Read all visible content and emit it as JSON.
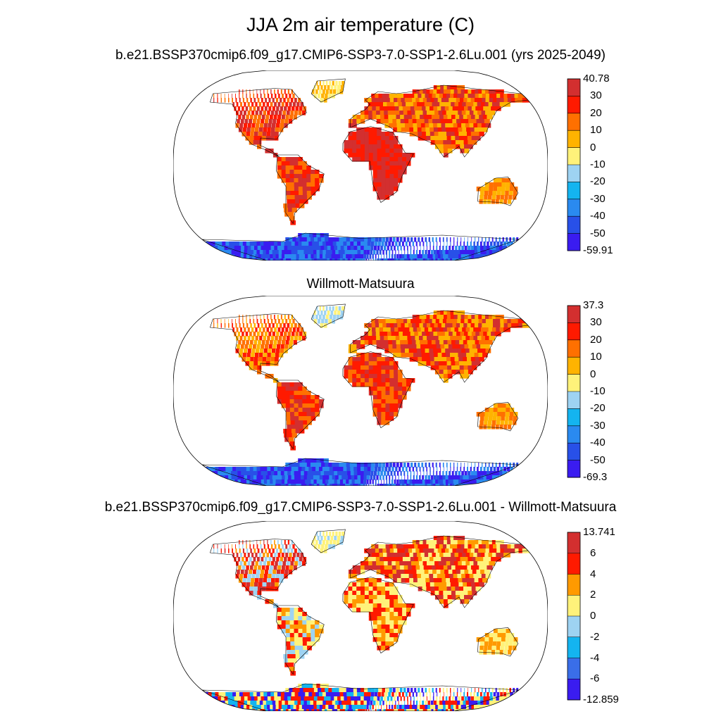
{
  "title": "JJA 2m air temperature (C)",
  "panels": [
    {
      "id": "model",
      "title": "b.e21.BSSP370cmip6.f09_g17.CMIP6-SSP3-7.0-SSP1-2.6Lu.001 (yrs 2025-2049)",
      "colorbar": {
        "labels": [
          "40.78",
          "30",
          "20",
          "10",
          "0",
          "-10",
          "-20",
          "-30",
          "-40",
          "-50",
          "-59.91"
        ],
        "colors": [
          "#d32f2f",
          "#ff1a00",
          "#ff7000",
          "#ffb300",
          "#fff27a",
          "#9ed3f2",
          "#14b4f0",
          "#2a8af0",
          "#2850e8",
          "#3a1cf0"
        ]
      }
    },
    {
      "id": "obs",
      "title": "Willmott-Matsuura",
      "colorbar": {
        "labels": [
          "37.3",
          "30",
          "20",
          "10",
          "0",
          "-10",
          "-20",
          "-30",
          "-40",
          "-50",
          "-69.3"
        ],
        "colors": [
          "#d32f2f",
          "#ff1a00",
          "#ff7000",
          "#ffb300",
          "#fff27a",
          "#9ed3f2",
          "#14b4f0",
          "#2a8af0",
          "#2850e8",
          "#3a1cf0"
        ]
      }
    },
    {
      "id": "diff",
      "title": "b.e21.BSSP370cmip6.f09_g17.CMIP6-SSP3-7.0-SSP1-2.6Lu.001 - Willmott-Matsuura",
      "colorbar": {
        "labels": [
          "13.741",
          "6",
          "4",
          "2",
          "0",
          "-2",
          "-4",
          "-6",
          "-12.859"
        ],
        "colors": [
          "#d32f2f",
          "#ff1a00",
          "#ff9a00",
          "#fff27a",
          "#9ed3f2",
          "#14b4f0",
          "#3a6ee8",
          "#3a1cf0"
        ]
      }
    }
  ]
}
